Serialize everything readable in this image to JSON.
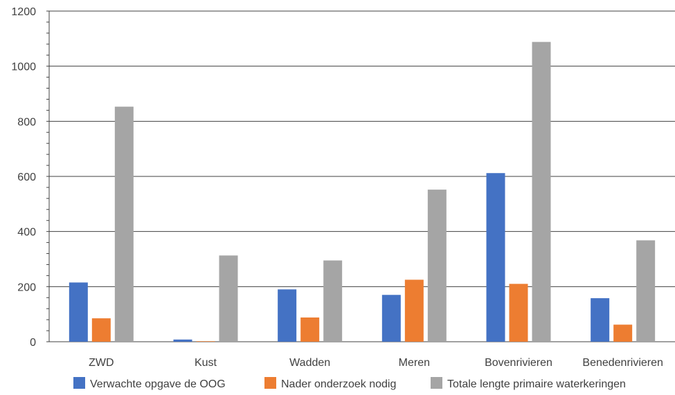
{
  "chart_data": {
    "type": "bar",
    "categories": [
      "ZWD",
      "Kust",
      "Wadden",
      "Meren",
      "Bovenrivieren",
      "Benedenrivieren"
    ],
    "series": [
      {
        "name": "Verwachte opgave de OOG",
        "color": "#4472c4",
        "values": [
          215,
          8,
          190,
          170,
          612,
          158
        ]
      },
      {
        "name": "Nader onderzoek nodig",
        "color": "#ed7d31",
        "values": [
          85,
          2,
          88,
          225,
          210,
          62
        ]
      },
      {
        "name": "Totale lengte primaire waterkeringen",
        "color": "#a5a5a5",
        "values": [
          853,
          313,
          295,
          552,
          1088,
          368
        ]
      }
    ],
    "yticks": [
      "0",
      "200",
      "400",
      "600",
      "800",
      "1000",
      "1200"
    ],
    "ylim": [
      0,
      1200
    ],
    "grid": true,
    "legend": "bottom"
  }
}
